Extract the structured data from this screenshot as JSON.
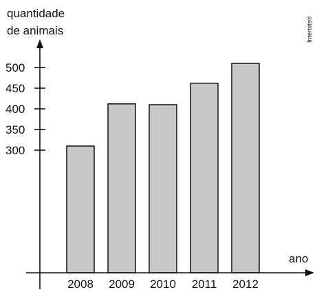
{
  "watermark": "Interbits®",
  "chart_data": {
    "type": "bar",
    "ylabel_lines": [
      "quantidade",
      "de animais"
    ],
    "xlabel": "ano",
    "categories": [
      "2008",
      "2009",
      "2010",
      "2011",
      "2012"
    ],
    "values": [
      310,
      412,
      410,
      462,
      510
    ],
    "yticks": [
      300,
      350,
      400,
      450,
      500
    ],
    "bar_color": "#c8c8c8",
    "edge_color": "#111111",
    "grid": false,
    "legend": "none"
  }
}
